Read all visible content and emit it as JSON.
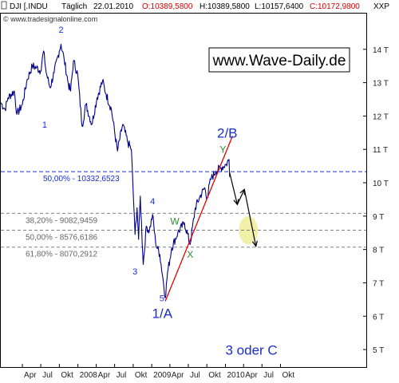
{
  "header": {
    "symbol": "DJI [.INDU",
    "interval": "Täglich",
    "date": "22.01.2010",
    "open": "O:10389,5800",
    "high": "H:10389,5800",
    "low": "L:10157,6400",
    "close": "C:10172,9800",
    "scale_mode": "XXP"
  },
  "source": "© www.tradesignalonline.com",
  "brand": "www.Wave-Daily.de",
  "colors": {
    "price": "#00008b",
    "trendline": "#e00000",
    "fib_main": "#1a2ed0",
    "fib_minor": "#808080",
    "wave_main": "#1a2ed0",
    "wave_minor": "#2e8b2e",
    "projection": "#000000",
    "target_zone": "#f2f0a8",
    "open_red": "#d40000"
  },
  "chart_data": {
    "type": "line",
    "title": "",
    "xlabel": "",
    "ylabel": "",
    "ylim": [
      4500,
      15000
    ],
    "y_ticks": [
      5000,
      6000,
      7000,
      8000,
      9000,
      10000,
      11000,
      12000,
      13000,
      14000
    ],
    "y_tick_labels": [
      "5 T",
      "6 T",
      "7 T",
      "8 T",
      "9 T",
      "10 T",
      "11 T",
      "12 T",
      "13 T",
      "14 T"
    ],
    "x_range": [
      "2006-12-15",
      "2011-11-30"
    ],
    "x_tick_labels": [
      {
        "date": "2007-04-01",
        "label": "Apr"
      },
      {
        "date": "2007-07-01",
        "label": "Jul"
      },
      {
        "date": "2007-10-01",
        "label": "Okt"
      },
      {
        "date": "2008-01-01",
        "label": "2008"
      },
      {
        "date": "2008-04-01",
        "label": "Apr"
      },
      {
        "date": "2008-07-01",
        "label": "Jul"
      },
      {
        "date": "2008-10-01",
        "label": "Okt"
      },
      {
        "date": "2009-01-01",
        "label": "2009"
      },
      {
        "date": "2009-04-01",
        "label": "Apr"
      },
      {
        "date": "2009-07-01",
        "label": "Jul"
      },
      {
        "date": "2009-10-01",
        "label": "Okt"
      },
      {
        "date": "2010-01-01",
        "label": "2010"
      },
      {
        "date": "2010-04-01",
        "label": "Apr"
      },
      {
        "date": "2010-07-01",
        "label": "Jul"
      },
      {
        "date": "2010-10-01",
        "label": "Okt"
      }
    ],
    "grid": false,
    "series": [
      {
        "points": [
          [
            "2006-12-15",
            12400
          ],
          [
            "2007-01-05",
            12200
          ],
          [
            "2007-01-20",
            12550
          ],
          [
            "2007-02-20",
            12750
          ],
          [
            "2007-03-05",
            12050
          ],
          [
            "2007-04-01",
            12350
          ],
          [
            "2007-04-25",
            13100
          ],
          [
            "2007-05-20",
            13500
          ],
          [
            "2007-06-10",
            13450
          ],
          [
            "2007-06-30",
            13350
          ],
          [
            "2007-07-15",
            13950
          ],
          [
            "2007-07-28",
            13300
          ],
          [
            "2007-08-16",
            12850
          ],
          [
            "2007-09-05",
            13300
          ],
          [
            "2007-10-01",
            13950
          ],
          [
            "2007-10-09",
            14150
          ],
          [
            "2007-10-25",
            13700
          ],
          [
            "2007-11-15",
            12950
          ],
          [
            "2007-11-26",
            12750
          ],
          [
            "2007-12-10",
            13650
          ],
          [
            "2007-12-31",
            13250
          ],
          [
            "2008-01-22",
            11700
          ],
          [
            "2008-02-10",
            12350
          ],
          [
            "2008-03-10",
            11750
          ],
          [
            "2008-04-05",
            12550
          ],
          [
            "2008-05-02",
            13050
          ],
          [
            "2008-05-20",
            12650
          ],
          [
            "2008-06-15",
            12200
          ],
          [
            "2008-07-15",
            10950
          ],
          [
            "2008-08-10",
            11750
          ],
          [
            "2008-09-05",
            11200
          ],
          [
            "2008-09-22",
            11000
          ],
          [
            "2008-10-10",
            8450
          ],
          [
            "2008-10-20",
            9250
          ],
          [
            "2008-10-28",
            8300
          ],
          [
            "2008-11-05",
            9600
          ],
          [
            "2008-11-20",
            7550
          ],
          [
            "2008-12-05",
            8700
          ],
          [
            "2008-12-20",
            8550
          ],
          [
            "2009-01-05",
            9050
          ],
          [
            "2009-01-20",
            8200
          ],
          [
            "2009-02-10",
            7850
          ],
          [
            "2009-02-25",
            7150
          ],
          [
            "2009-03-09",
            6550
          ],
          [
            "2009-03-20",
            7300
          ],
          [
            "2009-04-10",
            8050
          ],
          [
            "2009-05-10",
            8500
          ],
          [
            "2009-06-12",
            8800
          ],
          [
            "2009-07-10",
            8150
          ],
          [
            "2009-08-05",
            9250
          ],
          [
            "2009-08-25",
            9550
          ],
          [
            "2009-09-20",
            9850
          ],
          [
            "2009-10-02",
            9550
          ],
          [
            "2009-10-20",
            10100
          ],
          [
            "2009-11-15",
            10350
          ],
          [
            "2009-12-10",
            10450
          ],
          [
            "2010-01-05",
            10550
          ],
          [
            "2010-01-19",
            10700
          ],
          [
            "2010-01-22",
            10173
          ]
        ]
      }
    ],
    "trendline": {
      "from": [
        "2009-03-09",
        6450
      ],
      "to": [
        "2010-02-05",
        11400
      ]
    },
    "fib_levels": [
      {
        "label": "50,00% - 10332,6523",
        "value": 10332.6523,
        "style": "main"
      },
      {
        "label": "38,20% - 9082,9459",
        "value": 9082.9459,
        "style": "minor"
      },
      {
        "label": "50,00% - 8576,6186",
        "value": 8576.6186,
        "style": "minor"
      },
      {
        "label": "61,80% - 8070,2912",
        "value": 8070.2912,
        "style": "minor"
      }
    ],
    "projection": [
      [
        "2010-01-22",
        10300
      ],
      [
        "2010-03-01",
        9350
      ],
      [
        "2010-04-05",
        9800
      ],
      [
        "2010-06-01",
        8100
      ]
    ],
    "target_zone": {
      "center": [
        "2010-04-25",
        8575
      ],
      "width_days": 95,
      "height": 850
    },
    "annotations": [
      {
        "text": "1",
        "at": [
          "2007-07-20",
          11650
        ],
        "style": "wave_main"
      },
      {
        "text": "2",
        "at": [
          "2007-10-10",
          14500
        ],
        "style": "wave_main"
      },
      {
        "text": "3",
        "at": [
          "2008-10-10",
          7250
        ],
        "style": "wave_main"
      },
      {
        "text": "4",
        "at": [
          "2009-01-05",
          9350
        ],
        "style": "wave_main"
      },
      {
        "text": "5",
        "at": [
          "2009-02-20",
          6450
        ],
        "style": "wave_main"
      },
      {
        "text": "1/A",
        "at": [
          "2009-02-22",
          5950
        ],
        "style": "wave_big"
      },
      {
        "text": "2/B",
        "at": [
          "2010-01-10",
          11350
        ],
        "style": "wave_big"
      },
      {
        "text": "W",
        "at": [
          "2009-04-25",
          8750
        ],
        "style": "wave_minor"
      },
      {
        "text": "X",
        "at": [
          "2009-07-10",
          7750
        ],
        "style": "wave_minor"
      },
      {
        "text": "Y",
        "at": [
          "2009-12-20",
          10900
        ],
        "style": "wave_minor"
      },
      {
        "text": "3 oder C",
        "at": [
          "2010-05-10",
          4850
        ],
        "style": "wave_big"
      }
    ]
  }
}
